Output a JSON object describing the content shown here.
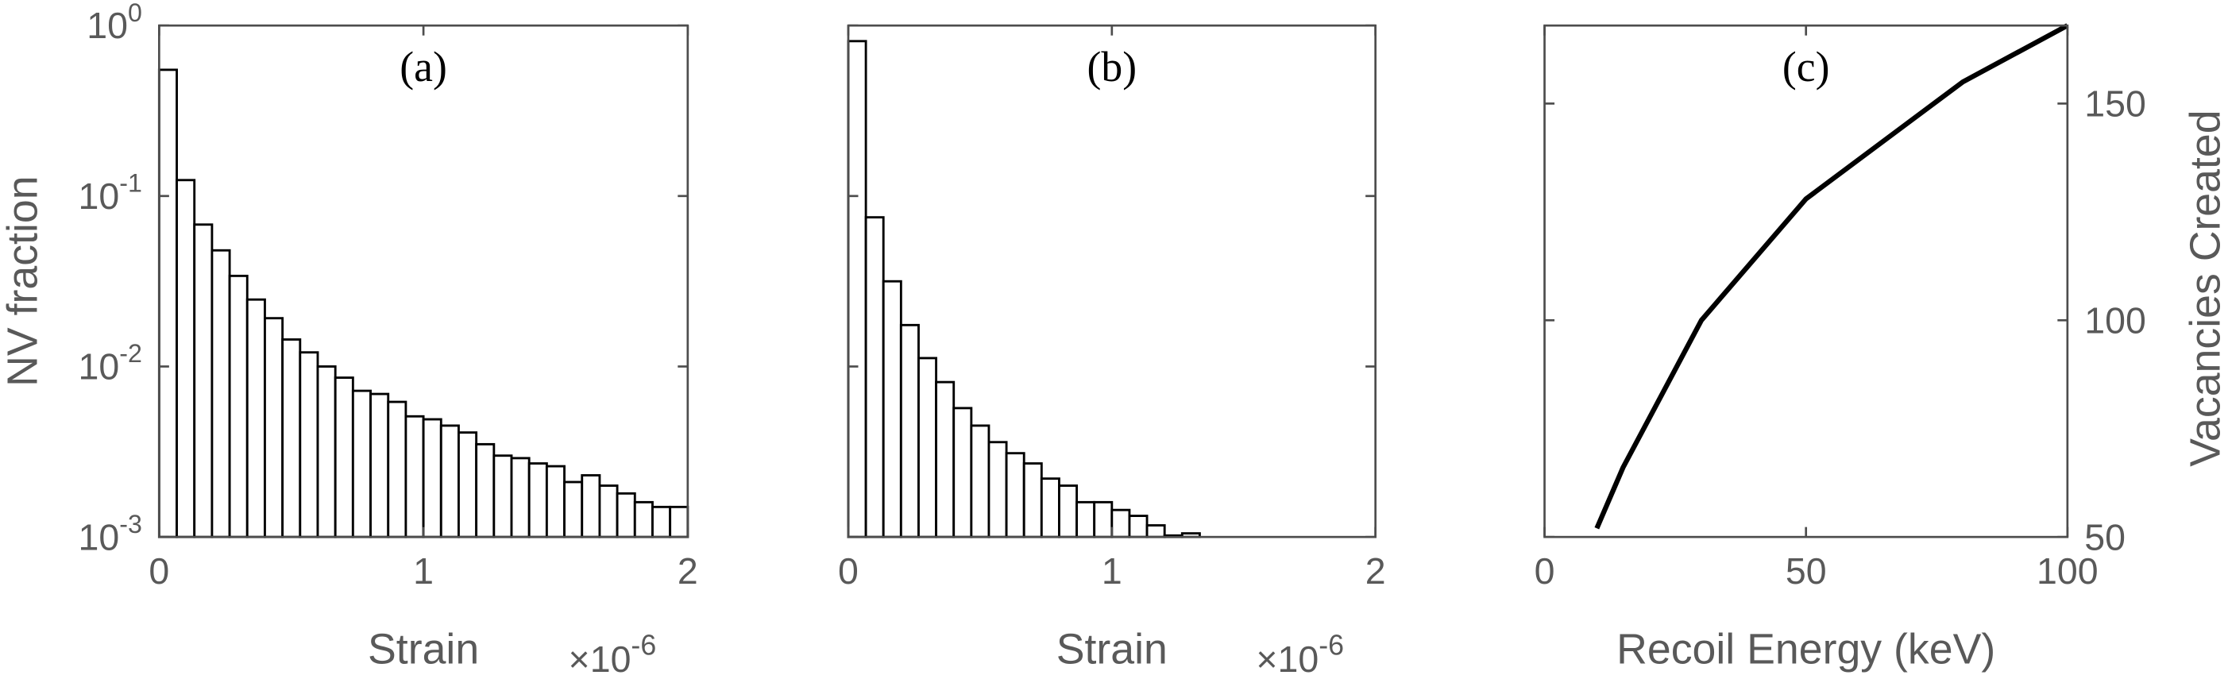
{
  "chart_data": [
    {
      "type": "histogram",
      "annotation": "(a)",
      "x_label": "Strain",
      "y_label": "NV fraction",
      "x_multiplier": {
        "base": "×10",
        "power": "-6"
      },
      "bins": [
        0,
        0.0667,
        0.1333,
        0.2,
        0.2667,
        0.3333,
        0.4,
        0.4667,
        0.5333,
        0.6,
        0.6667,
        0.7333,
        0.8,
        0.8667,
        0.9333,
        1,
        1.0667,
        1.1333,
        1.2,
        1.2667,
        1.3333,
        1.4,
        1.4667,
        1.5333,
        1.6,
        1.6667,
        1.7333,
        1.8,
        1.8667,
        1.9333,
        2
      ],
      "values": [
        0.55,
        0.124,
        0.068,
        0.048,
        0.034,
        0.0247,
        0.0192,
        0.0144,
        0.0121,
        0.01,
        0.0086,
        0.0072,
        0.0069,
        0.0062,
        0.0051,
        0.0049,
        0.0045,
        0.0041,
        0.0035,
        0.003,
        0.0029,
        0.0027,
        0.0026,
        0.0021,
        0.0023,
        0.002,
        0.0018,
        0.0016,
        0.0015,
        0.0015
      ],
      "color": "#ffffff",
      "edgecolor": "#000000",
      "yscale": "log",
      "xlim": [
        0,
        2
      ],
      "xticks": [
        0,
        1,
        2
      ],
      "ylim": [
        0.001,
        1
      ],
      "yticks": [
        {
          "value": 0.001,
          "label": "10",
          "exponent": "-3"
        },
        {
          "value": 0.01,
          "label": "10",
          "exponent": "-2"
        },
        {
          "value": 0.1,
          "label": "10",
          "exponent": "-1"
        },
        {
          "value": 1,
          "label": "10",
          "exponent": "0"
        }
      ]
    },
    {
      "type": "histogram",
      "annotation": "(b)",
      "x_label": "Strain",
      "x_multiplier": {
        "base": "×10",
        "power": "-6"
      },
      "bins": [
        0,
        0.0667,
        0.1333,
        0.2,
        0.2667,
        0.3333,
        0.4,
        0.4667,
        0.5333,
        0.6,
        0.6667,
        0.7333,
        0.8,
        0.8667,
        0.9333,
        1,
        1.0667,
        1.1333,
        1.2,
        1.2667,
        1.3333
      ],
      "values": [
        0.81,
        0.075,
        0.0316,
        0.0175,
        0.0112,
        0.0081,
        0.0057,
        0.0045,
        0.0036,
        0.0031,
        0.0027,
        0.0022,
        0.002,
        0.0016,
        0.0016,
        0.00144,
        0.00133,
        0.00117,
        0.00102,
        0.00105
      ],
      "color": "#ffffff",
      "edgecolor": "#000000",
      "yscale": "log",
      "xlim": [
        0,
        2
      ],
      "xticks": [
        0,
        1,
        2
      ],
      "ylim": [
        0.001,
        1
      ],
      "yticks": [
        0.001,
        0.01,
        0.1,
        1
      ]
    },
    {
      "type": "line",
      "annotation": "(c)",
      "x_label": "Recoil Energy (keV)",
      "y2_label": "Vacancies Created",
      "x": [
        10,
        15,
        30,
        50,
        80,
        100
      ],
      "series": [
        {
          "color": "#000000",
          "axis": "y2",
          "values": [
            52,
            66,
            100,
            128,
            155,
            168
          ]
        }
      ],
      "xlim": [
        0,
        100
      ],
      "xticks": [
        0,
        50,
        100
      ],
      "y2lim": [
        50,
        168
      ],
      "y2ticks": [
        50,
        100,
        150
      ]
    }
  ]
}
